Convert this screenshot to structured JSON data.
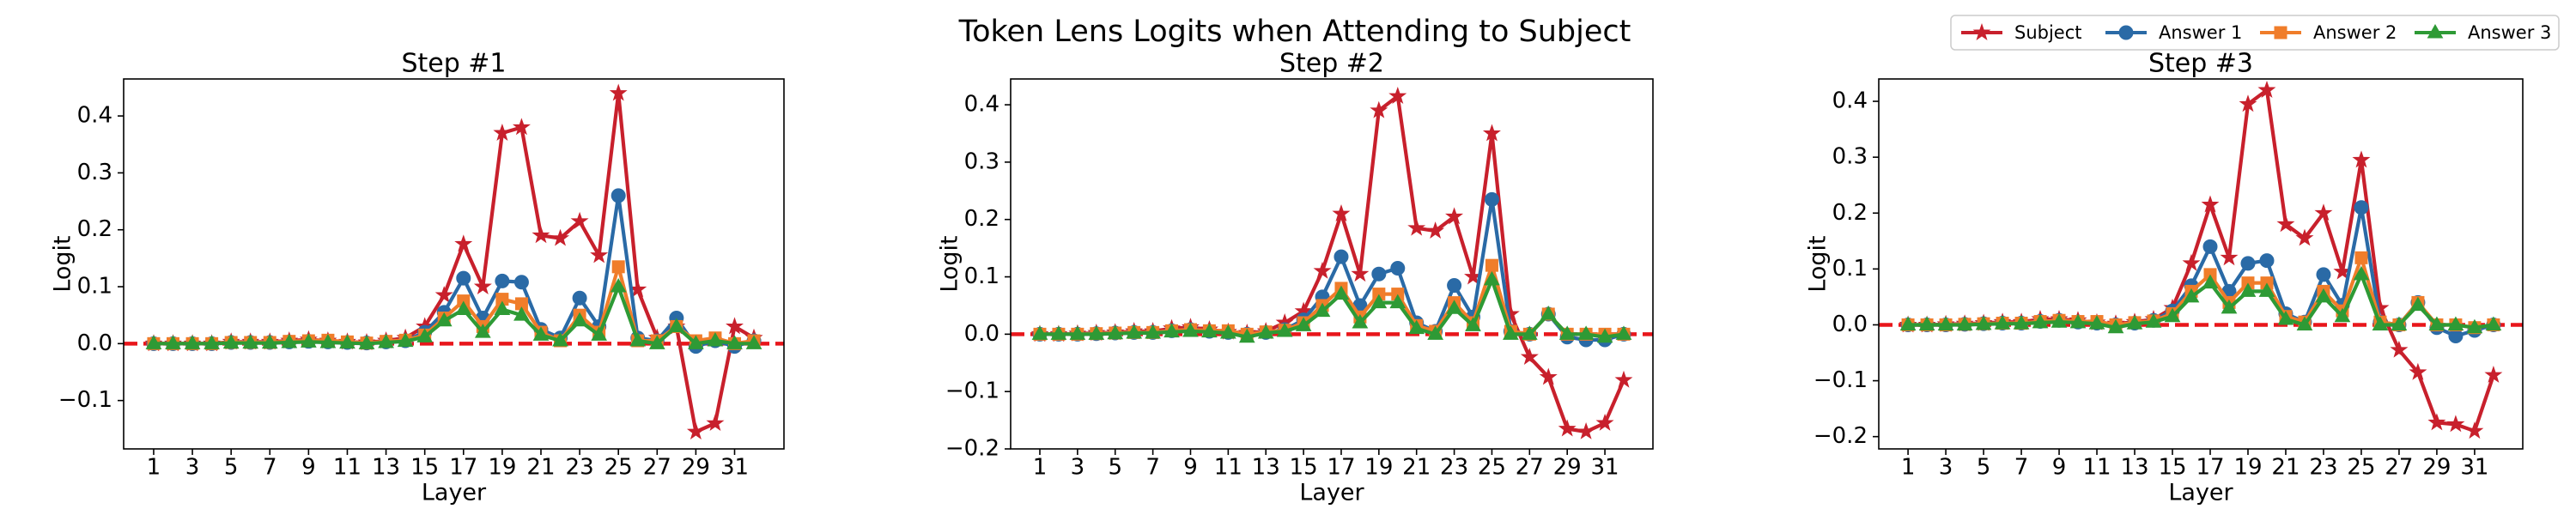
{
  "title": "Token Lens Logits when Attending to Subject",
  "legend": "upper right",
  "chart_data": [
    {
      "type": "line",
      "title": "Step #1",
      "xlabel": "Layer",
      "ylabel": "Logit",
      "x": [
        1,
        2,
        3,
        4,
        5,
        6,
        7,
        8,
        9,
        10,
        11,
        12,
        13,
        14,
        15,
        16,
        17,
        18,
        19,
        20,
        21,
        22,
        23,
        24,
        25,
        26,
        27,
        28,
        29,
        30,
        31,
        32
      ],
      "xlim": [
        -0.55,
        33.55
      ],
      "xticks": [
        1,
        3,
        5,
        7,
        9,
        11,
        13,
        15,
        17,
        19,
        21,
        23,
        25,
        27,
        29,
        31
      ],
      "ylim": [
        -0.185,
        0.465
      ],
      "yticks": [
        {
          "value": -0.1,
          "label": "−0.1"
        },
        {
          "value": 0,
          "label": "0.0"
        },
        0.1,
        0.2,
        0.3,
        0.4
      ],
      "hline": 0,
      "hline_color": "#e8161b",
      "series": [
        {
          "name": "Subject",
          "color": "#c8202c",
          "marker": "star",
          "values": [
            0,
            0,
            0,
            0,
            0.003,
            0.003,
            0.003,
            0.005,
            0.007,
            0.005,
            0.003,
            0.002,
            0.005,
            0.01,
            0.03,
            0.085,
            0.175,
            0.1,
            0.37,
            0.38,
            0.19,
            0.185,
            0.215,
            0.155,
            0.44,
            0.095,
            0.01,
            0.03,
            -0.155,
            -0.14,
            0.03,
            0.01
          ]
        },
        {
          "name": "Answer 1",
          "color": "#2a6aa6",
          "marker": "circle",
          "values": [
            0,
            0,
            0,
            0,
            0.002,
            0.002,
            0.002,
            0.003,
            0.004,
            0.003,
            0.002,
            0.001,
            0.003,
            0.005,
            0.02,
            0.055,
            0.115,
            0.045,
            0.11,
            0.108,
            0.025,
            0.01,
            0.08,
            0.03,
            0.26,
            0.01,
            0.005,
            0.045,
            -0.005,
            0.005,
            -0.005,
            0.005
          ]
        },
        {
          "name": "Answer 2",
          "color": "#f07d2a",
          "marker": "square",
          "values": [
            0,
            0,
            0,
            0,
            0.002,
            0.002,
            0.002,
            0.004,
            0.005,
            0.006,
            0.003,
            0.001,
            0.004,
            0.006,
            0.015,
            0.045,
            0.075,
            0.03,
            0.078,
            0.07,
            0.02,
            0.005,
            0.05,
            0.02,
            0.135,
            0.005,
            0.005,
            0.03,
            0.005,
            0.01,
            0,
            0.005
          ]
        },
        {
          "name": "Answer 3",
          "color": "#2e9a35",
          "marker": "triangle",
          "values": [
            0,
            0,
            0,
            0,
            0.001,
            0.001,
            0.001,
            0.002,
            0.003,
            0.002,
            0.001,
            0,
            0.002,
            0.004,
            0.012,
            0.04,
            0.06,
            0.02,
            0.06,
            0.05,
            0.015,
            0.005,
            0.04,
            0.015,
            0.1,
            0.005,
            0,
            0.03,
            0,
            0.005,
            0,
            0
          ]
        }
      ]
    },
    {
      "type": "line",
      "title": "Step #2",
      "xlabel": "Layer",
      "ylabel": "Logit",
      "x": [
        1,
        2,
        3,
        4,
        5,
        6,
        7,
        8,
        9,
        10,
        11,
        12,
        13,
        14,
        15,
        16,
        17,
        18,
        19,
        20,
        21,
        22,
        23,
        24,
        25,
        26,
        27,
        28,
        29,
        30,
        31,
        32
      ],
      "xlim": [
        -0.55,
        33.55
      ],
      "xticks": [
        1,
        3,
        5,
        7,
        9,
        11,
        13,
        15,
        17,
        19,
        21,
        23,
        25,
        27,
        29,
        31
      ],
      "ylim": [
        -0.2,
        0.445
      ],
      "yticks": [
        {
          "value": -0.2,
          "label": "−0.2"
        },
        {
          "value": -0.1,
          "label": "−0.1"
        },
        {
          "value": 0,
          "label": "0.0"
        },
        0.1,
        0.2,
        0.3,
        0.4
      ],
      "hline": 0,
      "hline_color": "#e8161b",
      "series": [
        {
          "name": "Subject",
          "color": "#c8202c",
          "marker": "star",
          "values": [
            0,
            0,
            0.001,
            0.002,
            0.003,
            0.005,
            0.005,
            0.01,
            0.012,
            0.008,
            0.004,
            0.002,
            0.005,
            0.02,
            0.04,
            0.11,
            0.21,
            0.105,
            0.39,
            0.415,
            0.185,
            0.18,
            0.205,
            0.1,
            0.35,
            0.035,
            -0.04,
            -0.075,
            -0.165,
            -0.17,
            -0.155,
            -0.08
          ]
        },
        {
          "name": "Answer 1",
          "color": "#2a6aa6",
          "marker": "circle",
          "values": [
            0,
            0,
            0,
            0.001,
            0.002,
            0.003,
            0.003,
            0.006,
            0.008,
            0.005,
            0.003,
            0,
            0.003,
            0.008,
            0.025,
            0.065,
            0.135,
            0.05,
            0.105,
            0.115,
            0.02,
            0.005,
            0.085,
            0.03,
            0.235,
            0.005,
            0,
            0.035,
            -0.005,
            -0.01,
            -0.01,
            0
          ]
        },
        {
          "name": "Answer 2",
          "color": "#f07d2a",
          "marker": "square",
          "values": [
            0,
            0,
            0,
            0.001,
            0.002,
            0.003,
            0.003,
            0.006,
            0.008,
            0.006,
            0.006,
            0,
            0.004,
            0.007,
            0.02,
            0.05,
            0.08,
            0.03,
            0.07,
            0.07,
            0.015,
            0.005,
            0.055,
            0.02,
            0.12,
            0.005,
            0,
            0.035,
            0,
            0,
            0,
            0
          ]
        },
        {
          "name": "Answer 3",
          "color": "#2e9a35",
          "marker": "triangle",
          "values": [
            0,
            0,
            0,
            0,
            0.001,
            0.002,
            0.002,
            0.004,
            0.005,
            0.004,
            0.002,
            -0.005,
            0.002,
            0.005,
            0.015,
            0.04,
            0.07,
            0.02,
            0.055,
            0.055,
            0.01,
            0,
            0.045,
            0.015,
            0.095,
            0,
            0,
            0.035,
            0,
            0,
            -0.005,
            0
          ]
        }
      ]
    },
    {
      "type": "line",
      "title": "Step #3",
      "xlabel": "Layer",
      "ylabel": "Logit",
      "x": [
        1,
        2,
        3,
        4,
        5,
        6,
        7,
        8,
        9,
        10,
        11,
        12,
        13,
        14,
        15,
        16,
        17,
        18,
        19,
        20,
        21,
        22,
        23,
        24,
        25,
        26,
        27,
        28,
        29,
        30,
        31,
        32
      ],
      "xlim": [
        -0.55,
        33.55
      ],
      "xticks": [
        1,
        3,
        5,
        7,
        9,
        11,
        13,
        15,
        17,
        19,
        21,
        23,
        25,
        27,
        29,
        31
      ],
      "ylim": [
        -0.222,
        0.44
      ],
      "yticks": [
        {
          "value": -0.2,
          "label": "−0.2"
        },
        {
          "value": -0.1,
          "label": "−0.1"
        },
        {
          "value": 0,
          "label": "0.0"
        },
        0.1,
        0.2,
        0.3,
        0.4
      ],
      "hline": 0,
      "hline_color": "#e8161b",
      "series": [
        {
          "name": "Subject",
          "color": "#c8202c",
          "marker": "star",
          "values": [
            0,
            0,
            0.001,
            0.002,
            0.003,
            0.005,
            0.005,
            0.01,
            0.01,
            0.008,
            0.004,
            0.002,
            0.005,
            0.01,
            0.03,
            0.11,
            0.215,
            0.12,
            0.395,
            0.42,
            0.18,
            0.155,
            0.2,
            0.095,
            0.295,
            0.03,
            -0.045,
            -0.085,
            -0.175,
            -0.178,
            -0.19,
            -0.09
          ]
        },
        {
          "name": "Answer 1",
          "color": "#2a6aa6",
          "marker": "circle",
          "values": [
            0,
            0,
            0,
            0.001,
            0.002,
            0.003,
            0.003,
            0.006,
            0.008,
            0.005,
            0.003,
            0,
            0.003,
            0.008,
            0.025,
            0.07,
            0.14,
            0.06,
            0.11,
            0.115,
            0.02,
            0.005,
            0.09,
            0.035,
            0.21,
            0.005,
            0,
            0.04,
            -0.005,
            -0.02,
            -0.01,
            0
          ]
        },
        {
          "name": "Answer 2",
          "color": "#f07d2a",
          "marker": "square",
          "values": [
            0,
            0,
            0,
            0.001,
            0.002,
            0.003,
            0.003,
            0.006,
            0.008,
            0.006,
            0.006,
            0,
            0.004,
            0.007,
            0.02,
            0.06,
            0.09,
            0.04,
            0.075,
            0.075,
            0.015,
            0.005,
            0.06,
            0.025,
            0.12,
            0.005,
            0,
            0.04,
            0,
            0,
            -0.005,
            0
          ]
        },
        {
          "name": "Answer 3",
          "color": "#2e9a35",
          "marker": "triangle",
          "values": [
            0,
            0,
            0,
            0,
            0.001,
            0.002,
            0.002,
            0.004,
            0.005,
            0.004,
            0.002,
            -0.005,
            0.002,
            0.005,
            0.015,
            0.05,
            0.075,
            0.03,
            0.06,
            0.06,
            0.01,
            0,
            0.05,
            0.015,
            0.09,
            0,
            0,
            0.035,
            0,
            0,
            -0.005,
            0
          ]
        }
      ]
    }
  ]
}
